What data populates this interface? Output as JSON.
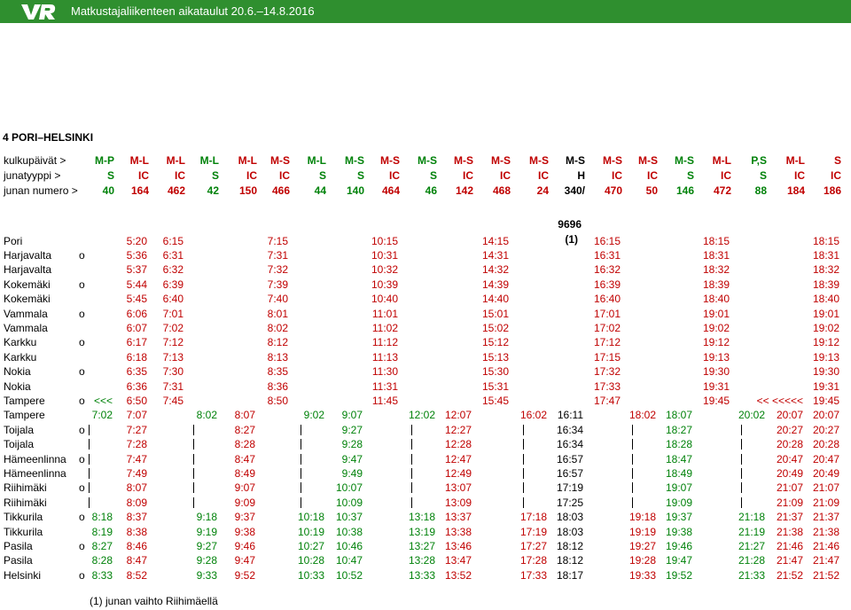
{
  "header": {
    "title": "Matkustajaliikenteen aikataulut 20.6.–14.8.2016"
  },
  "section_title": "4 PORI–HELSINKI",
  "footnote": "(1) junan vaihto Riihimäellä",
  "colors": {
    "brand_green": "#2f8f2f",
    "green": "#00820a",
    "red": "#c00000",
    "black": "#000000"
  },
  "header_rows": [
    {
      "label": "kulkupäivät >",
      "values": [
        "M-P",
        "M-L",
        "M-L",
        "M-L",
        "M-L",
        "M-S",
        "M-L",
        "M-S",
        "M-S",
        "M-S",
        "M-S",
        "M-S",
        "M-S",
        "M-S",
        "M-S",
        "M-S",
        "M-S",
        "M-L",
        "P,S",
        "M-L",
        "S"
      ]
    },
    {
      "label": "junatyyppi >",
      "values": [
        "S",
        "IC",
        "IC",
        "S",
        "IC",
        "IC",
        "S",
        "S",
        "IC",
        "S",
        "IC",
        "IC",
        "IC",
        "H",
        "IC",
        "IC",
        "S",
        "IC",
        "S",
        "IC",
        "IC"
      ]
    },
    {
      "label": "junan numero >",
      "values": [
        "40",
        "164",
        "462",
        "42",
        "150",
        "466",
        "44",
        "140",
        "464",
        "46",
        "142",
        "468",
        "24",
        "340/",
        "470",
        "50",
        "146",
        "472",
        "88",
        "184",
        "186"
      ]
    }
  ],
  "extra_header": {
    "line1": "9696",
    "line2": "(1)"
  },
  "column_colors": [
    "g",
    "r",
    "r",
    "g",
    "r",
    "r",
    "g",
    "g",
    "r",
    "g",
    "r",
    "r",
    "r",
    "k",
    "r",
    "r",
    "g",
    "r",
    "g",
    "r",
    "r"
  ],
  "stations": [
    {
      "name": "Pori",
      "mark": "",
      "times": [
        "",
        "5:20",
        "6:15",
        "",
        "",
        "7:15",
        "",
        "",
        "10:15",
        "",
        "",
        "14:15",
        "",
        "",
        "16:15",
        "",
        "",
        "18:15",
        "",
        "",
        "18:15"
      ]
    },
    {
      "name": "Harjavalta",
      "mark": "o",
      "times": [
        "",
        "5:36",
        "6:31",
        "",
        "",
        "7:31",
        "",
        "",
        "10:31",
        "",
        "",
        "14:31",
        "",
        "",
        "16:31",
        "",
        "",
        "18:31",
        "",
        "",
        "18:31"
      ]
    },
    {
      "name": "Harjavalta",
      "mark": "",
      "times": [
        "",
        "5:37",
        "6:32",
        "",
        "",
        "7:32",
        "",
        "",
        "10:32",
        "",
        "",
        "14:32",
        "",
        "",
        "16:32",
        "",
        "",
        "18:32",
        "",
        "",
        "18:32"
      ]
    },
    {
      "name": "Kokemäki",
      "mark": "o",
      "times": [
        "",
        "5:44",
        "6:39",
        "",
        "",
        "7:39",
        "",
        "",
        "10:39",
        "",
        "",
        "14:39",
        "",
        "",
        "16:39",
        "",
        "",
        "18:39",
        "",
        "",
        "18:39"
      ]
    },
    {
      "name": "Kokemäki",
      "mark": "",
      "times": [
        "",
        "5:45",
        "6:40",
        "",
        "",
        "7:40",
        "",
        "",
        "10:40",
        "",
        "",
        "14:40",
        "",
        "",
        "16:40",
        "",
        "",
        "18:40",
        "",
        "",
        "18:40"
      ]
    },
    {
      "name": "Vammala",
      "mark": "o",
      "times": [
        "",
        "6:06",
        "7:01",
        "",
        "",
        "8:01",
        "",
        "",
        "11:01",
        "",
        "",
        "15:01",
        "",
        "",
        "17:01",
        "",
        "",
        "19:01",
        "",
        "",
        "19:01"
      ]
    },
    {
      "name": "Vammala",
      "mark": "",
      "times": [
        "",
        "6:07",
        "7:02",
        "",
        "",
        "8:02",
        "",
        "",
        "11:02",
        "",
        "",
        "15:02",
        "",
        "",
        "17:02",
        "",
        "",
        "19:02",
        "",
        "",
        "19:02"
      ]
    },
    {
      "name": "Karkku",
      "mark": "o",
      "times": [
        "",
        "6:17",
        "7:12",
        "",
        "",
        "8:12",
        "",
        "",
        "11:12",
        "",
        "",
        "15:12",
        "",
        "",
        "17:12",
        "",
        "",
        "19:12",
        "",
        "",
        "19:12"
      ]
    },
    {
      "name": "Karkku",
      "mark": "",
      "times": [
        "",
        "6:18",
        "7:13",
        "",
        "",
        "8:13",
        "",
        "",
        "11:13",
        "",
        "",
        "15:13",
        "",
        "",
        "17:15",
        "",
        "",
        "19:13",
        "",
        "",
        "19:13"
      ]
    },
    {
      "name": "Nokia",
      "mark": "o",
      "times": [
        "",
        "6:35",
        "7:30",
        "",
        "",
        "8:35",
        "",
        "",
        "11:30",
        "",
        "",
        "15:30",
        "",
        "",
        "17:32",
        "",
        "",
        "19:30",
        "",
        "",
        "19:30"
      ]
    },
    {
      "name": "Nokia",
      "mark": "",
      "times": [
        "",
        "6:36",
        "7:31",
        "",
        "",
        "8:36",
        "",
        "",
        "11:31",
        "",
        "",
        "15:31",
        "",
        "",
        "17:33",
        "",
        "",
        "19:31",
        "",
        "",
        "19:31"
      ]
    },
    {
      "name": "Tampere",
      "mark": "o",
      "times": [
        "<<<",
        "6:50",
        "7:45",
        "",
        "",
        "8:50",
        "",
        "",
        "11:45",
        "",
        "",
        "15:45",
        "",
        "",
        "17:47",
        "",
        "",
        "19:45",
        "",
        "<< <<<<<",
        "19:45"
      ]
    },
    {
      "name": "Tampere",
      "mark": "",
      "times": [
        "7:02",
        "7:07",
        "",
        "8:02",
        "8:07",
        "",
        "9:02",
        "9:07",
        "",
        "12:02",
        "12:07",
        "",
        "16:02",
        "16:11",
        "",
        "18:02",
        "18:07",
        "",
        "20:02",
        "20:07",
        "20:07"
      ]
    },
    {
      "name": "Toijala",
      "mark": "o",
      "times": [
        "|",
        "7:27",
        "",
        "|",
        "8:27",
        "",
        "|",
        "9:27",
        "",
        "|",
        "12:27",
        "",
        "|",
        "16:34",
        "",
        "|",
        "18:27",
        "",
        "|",
        "20:27",
        "20:27"
      ]
    },
    {
      "name": "Toijala",
      "mark": "",
      "times": [
        "|",
        "7:28",
        "",
        "|",
        "8:28",
        "",
        "|",
        "9:28",
        "",
        "|",
        "12:28",
        "",
        "|",
        "16:34",
        "",
        "|",
        "18:28",
        "",
        "|",
        "20:28",
        "20:28"
      ]
    },
    {
      "name": "Hämeenlinna",
      "mark": "o",
      "times": [
        "|",
        "7:47",
        "",
        "|",
        "8:47",
        "",
        "|",
        "9:47",
        "",
        "|",
        "12:47",
        "",
        "|",
        "16:57",
        "",
        "|",
        "18:47",
        "",
        "|",
        "20:47",
        "20:47"
      ]
    },
    {
      "name": "Hämeenlinna",
      "mark": "",
      "times": [
        "|",
        "7:49",
        "",
        "|",
        "8:49",
        "",
        "|",
        "9:49",
        "",
        "|",
        "12:49",
        "",
        "|",
        "16:57",
        "",
        "|",
        "18:49",
        "",
        "|",
        "20:49",
        "20:49"
      ]
    },
    {
      "name": "Riihimäki",
      "mark": "o",
      "times": [
        "|",
        "8:07",
        "",
        "|",
        "9:07",
        "",
        "|",
        "10:07",
        "",
        "|",
        "13:07",
        "",
        "|",
        "17:19",
        "",
        "|",
        "19:07",
        "",
        "|",
        "21:07",
        "21:07"
      ]
    },
    {
      "name": "Riihimäki",
      "mark": "",
      "times": [
        "|",
        "8:09",
        "",
        "|",
        "9:09",
        "",
        "|",
        "10:09",
        "",
        "|",
        "13:09",
        "",
        "|",
        "17:25",
        "",
        "|",
        "19:09",
        "",
        "|",
        "21:09",
        "21:09"
      ]
    },
    {
      "name": "Tikkurila",
      "mark": "o",
      "times": [
        "8:18",
        "8:37",
        "",
        "9:18",
        "9:37",
        "",
        "10:18",
        "10:37",
        "",
        "13:18",
        "13:37",
        "",
        "17:18",
        "18:03",
        "",
        "19:18",
        "19:37",
        "",
        "21:18",
        "21:37",
        "21:37"
      ]
    },
    {
      "name": "Tikkurila",
      "mark": "",
      "times": [
        "8:19",
        "8:38",
        "",
        "9:19",
        "9:38",
        "",
        "10:19",
        "10:38",
        "",
        "13:19",
        "13:38",
        "",
        "17:19",
        "18:03",
        "",
        "19:19",
        "19:38",
        "",
        "21:19",
        "21:38",
        "21:38"
      ]
    },
    {
      "name": "Pasila",
      "mark": "o",
      "times": [
        "8:27",
        "8:46",
        "",
        "9:27",
        "9:46",
        "",
        "10:27",
        "10:46",
        "",
        "13:27",
        "13:46",
        "",
        "17:27",
        "18:12",
        "",
        "19:27",
        "19:46",
        "",
        "21:27",
        "21:46",
        "21:46"
      ]
    },
    {
      "name": "Pasila",
      "mark": "",
      "times": [
        "8:28",
        "8:47",
        "",
        "9:28",
        "9:47",
        "",
        "10:28",
        "10:47",
        "",
        "13:28",
        "13:47",
        "",
        "17:28",
        "18:12",
        "",
        "19:28",
        "19:47",
        "",
        "21:28",
        "21:47",
        "21:47"
      ]
    },
    {
      "name": "Helsinki",
      "mark": "o",
      "times": [
        "8:33",
        "8:52",
        "",
        "9:33",
        "9:52",
        "",
        "10:33",
        "10:52",
        "",
        "13:33",
        "13:52",
        "",
        "17:33",
        "18:17",
        "",
        "19:33",
        "19:52",
        "",
        "21:33",
        "21:52",
        "21:52"
      ]
    }
  ]
}
